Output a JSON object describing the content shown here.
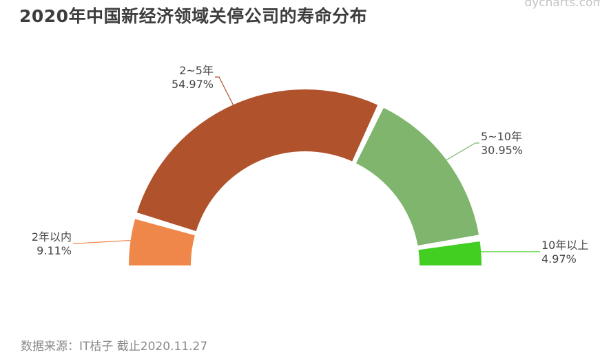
{
  "title": "2020年中国新经济领域关停公司的寿命分布",
  "watermark": "dycharts.com",
  "source": "数据来源：IT桔子 截止2020.11.27",
  "chart_data": {
    "type": "pie",
    "variant": "half-donut",
    "title": "2020年中国新经济领域关停公司的寿命分布",
    "slices": [
      {
        "label": "2年以内",
        "value": 9.11,
        "value_label": "9.11%",
        "color": "#f0874a"
      },
      {
        "label": "2~5年",
        "value": 54.97,
        "value_label": "54.97%",
        "color": "#b0522b"
      },
      {
        "label": "5~10年",
        "value": 30.95,
        "value_label": "30.95%",
        "color": "#7fb56c"
      },
      {
        "label": "10年以上",
        "value": 4.97,
        "value_label": "4.97%",
        "color": "#42cf22"
      }
    ]
  }
}
